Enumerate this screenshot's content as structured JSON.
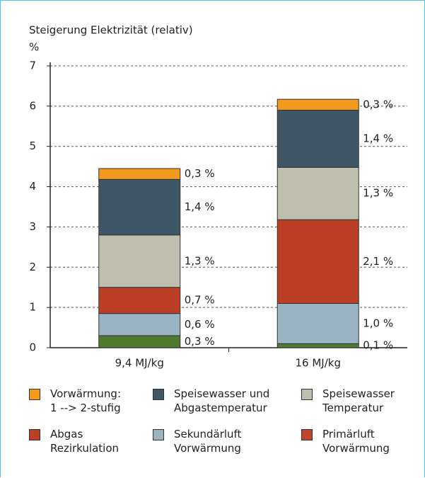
{
  "chart_data": {
    "type": "stacked_bar",
    "y_axis_label": "Steigerung Elektrizität (relativ)",
    "y_unit": "%",
    "categories": [
      "9,4 MJ/kg",
      "16 MJ/kg"
    ],
    "series": [
      {
        "name": "Primärluft\nVorwärmung",
        "color": "#4e7a2e",
        "legend_color": "#c0432a",
        "values": [
          0.3,
          0.1
        ],
        "value_labels": [
          "0,3 %",
          "0,1 %"
        ]
      },
      {
        "name": "Sekundärluft\nVorwärmung",
        "color": "#9ab3c2",
        "values": [
          0.55,
          1.0
        ],
        "value_labels": [
          "0,6 %",
          "1,0 %"
        ]
      },
      {
        "name": "Abgas\nRezirkulation",
        "color": "#bb3f24",
        "values": [
          0.65,
          2.08
        ],
        "value_labels": [
          "0,7 %",
          "2,1 %"
        ]
      },
      {
        "name": "Speisewasser\nTemperatur",
        "color": "#bfbfb0",
        "values": [
          1.3,
          1.3
        ],
        "value_labels": [
          "1,3 %",
          "1,3 %"
        ]
      },
      {
        "name": "Speisewasser und\nAbgastemperatur",
        "color": "#3e5666",
        "values": [
          1.38,
          1.42
        ],
        "value_labels": [
          "1,4 %",
          "1,4 %"
        ]
      },
      {
        "name": "Vorwärmung:\n1 --> 2-stufig",
        "color": "#f39a1e",
        "values": [
          0.27,
          0.27
        ],
        "value_labels": [
          "0,3 %",
          "0,3 %"
        ]
      }
    ],
    "ylim": [
      0,
      7
    ],
    "yticks": [
      0,
      1,
      2,
      3,
      4,
      5,
      6,
      7
    ],
    "grid": true
  }
}
